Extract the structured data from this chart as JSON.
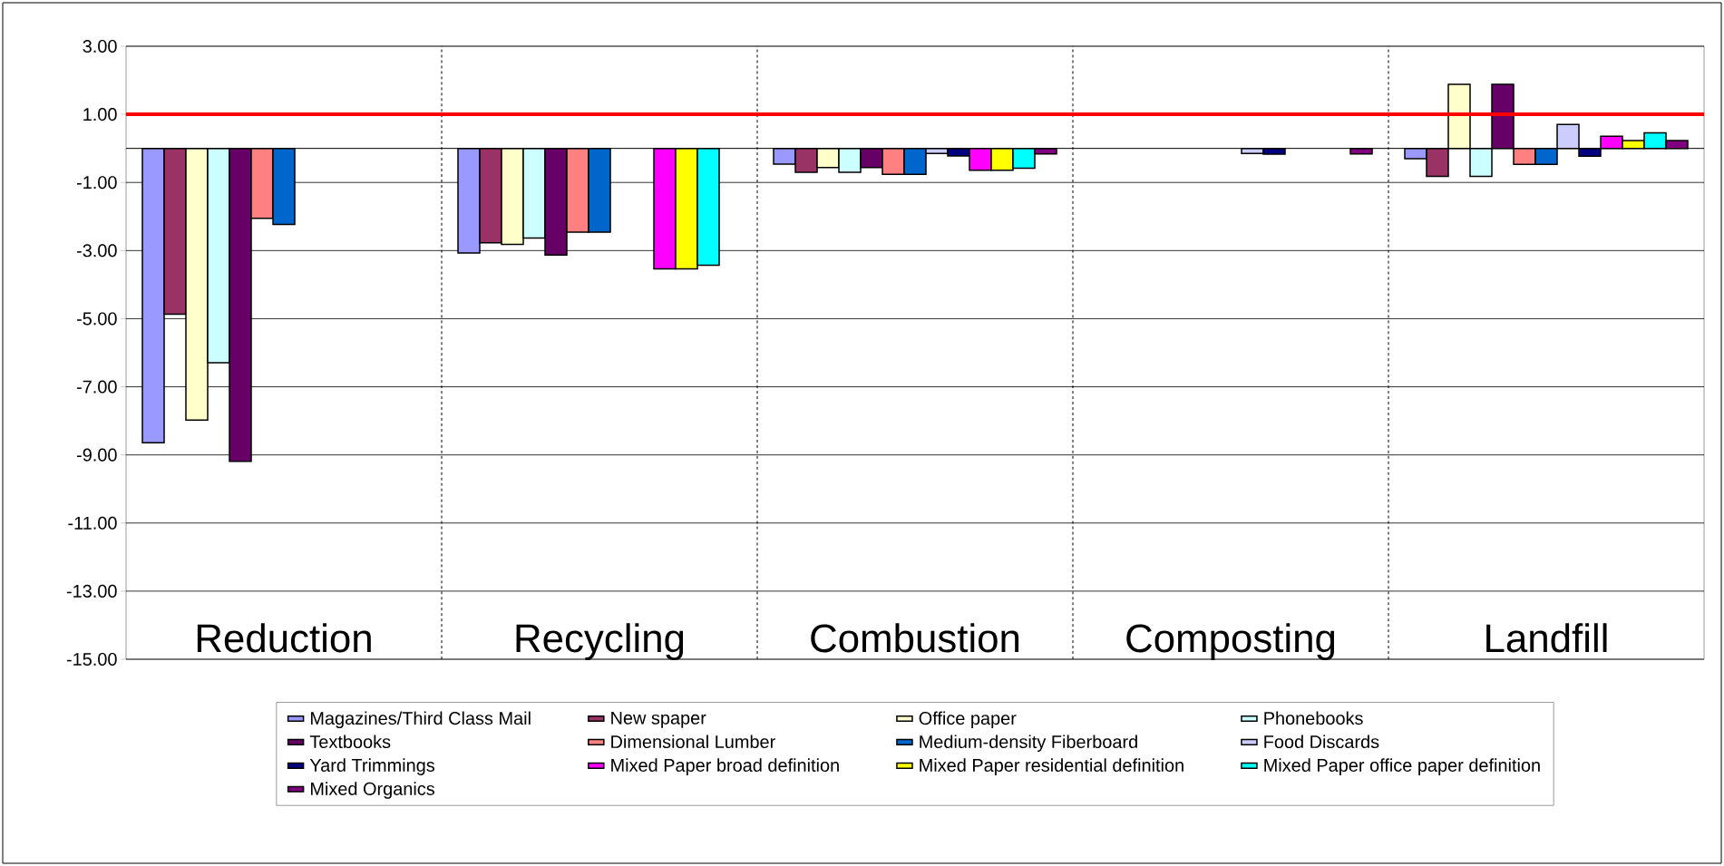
{
  "chart_data": {
    "type": "bar",
    "categories": [
      "Reduction",
      "Recycling",
      "Combustion",
      "Composting",
      "Landfill"
    ],
    "series": [
      {
        "name": "Magazines/Third Class Mail",
        "color": "#9999ff",
        "values": [
          -8.64,
          -3.07,
          -0.46,
          null,
          -0.3
        ]
      },
      {
        "name": "New spaper",
        "color": "#993366",
        "values": [
          -4.87,
          -2.77,
          -0.7,
          null,
          -0.82
        ]
      },
      {
        "name": "Office paper",
        "color": "#ffffcc",
        "values": [
          -7.98,
          -2.82,
          -0.56,
          null,
          1.88
        ]
      },
      {
        "name": "Phonebooks",
        "color": "#ccffff",
        "values": [
          -6.29,
          -2.63,
          -0.7,
          null,
          -0.82
        ]
      },
      {
        "name": "Textbooks",
        "color": "#660066",
        "values": [
          -9.19,
          -3.13,
          -0.56,
          null,
          1.88
        ]
      },
      {
        "name": "Dimensional Lumber",
        "color": "#ff8080",
        "values": [
          -2.05,
          -2.46,
          -0.76,
          null,
          -0.47
        ]
      },
      {
        "name": "Medium-density Fiberboard",
        "color": "#0066cc",
        "values": [
          -2.23,
          -2.46,
          -0.76,
          null,
          -0.47
        ]
      },
      {
        "name": "Food Discards",
        "color": "#ccccff",
        "values": [
          null,
          null,
          -0.15,
          -0.15,
          0.7
        ]
      },
      {
        "name": "Yard Trimmings",
        "color": "#000080",
        "values": [
          null,
          null,
          -0.22,
          -0.17,
          -0.23
        ]
      },
      {
        "name": "Mixed Paper broad definition",
        "color": "#ff00ff",
        "values": [
          null,
          -3.54,
          -0.64,
          null,
          0.36
        ]
      },
      {
        "name": "Mixed Paper residential definition",
        "color": "#ffff00",
        "values": [
          null,
          -3.54,
          -0.64,
          null,
          0.23
        ]
      },
      {
        "name": "Mixed Paper office paper definition",
        "color": "#00ffff",
        "values": [
          null,
          -3.43,
          -0.58,
          null,
          0.46
        ]
      },
      {
        "name": "Mixed Organics",
        "color": "#800080",
        "values": [
          null,
          null,
          -0.16,
          -0.16,
          0.23
        ]
      }
    ],
    "ylim": [
      -15,
      3
    ],
    "yticks": [
      {
        "value": 3,
        "label": "3.00"
      },
      {
        "value": 1,
        "label": "1.00"
      },
      {
        "value": -1,
        "label": "-1.00"
      },
      {
        "value": -3,
        "label": "-3.00"
      },
      {
        "value": -5,
        "label": "-5.00"
      },
      {
        "value": -7,
        "label": "-7.00"
      },
      {
        "value": -9,
        "label": "-9.00"
      },
      {
        "value": -11,
        "label": "-11.00"
      },
      {
        "value": -13,
        "label": "-13.00"
      },
      {
        "value": -15,
        "label": "-15.00"
      }
    ],
    "ref_lines": [
      {
        "axis": "y",
        "value": 1,
        "color": "#ff0000"
      }
    ],
    "grid": true,
    "legend": "bottom"
  }
}
